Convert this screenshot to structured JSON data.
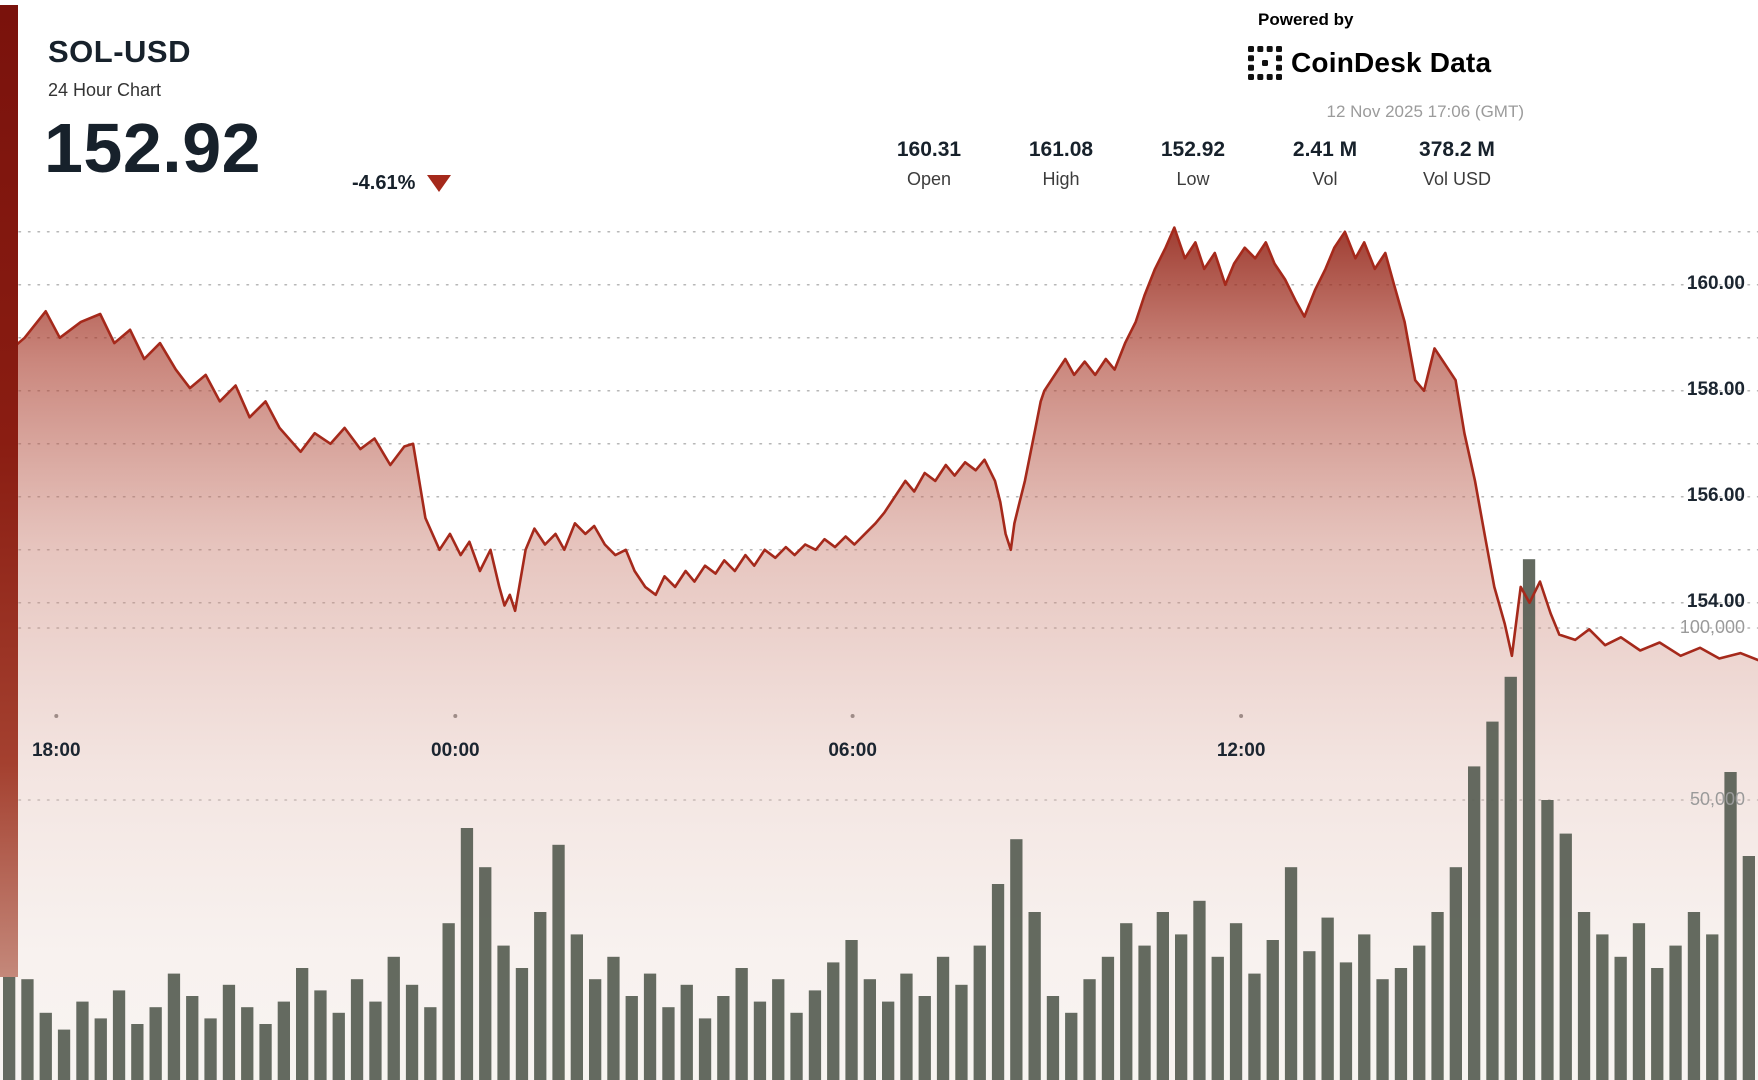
{
  "header": {
    "symbol": "SOL-USD",
    "subtitle": "24 Hour Chart",
    "price": "152.92",
    "change": "-4.61%",
    "change_direction": "down",
    "powered_by": "Powered by",
    "brand": "CoinDesk Data",
    "timestamp": "12 Nov 2025 17:06 (GMT)"
  },
  "stats": [
    {
      "value": "160.31",
      "label": "Open"
    },
    {
      "value": "161.08",
      "label": "High"
    },
    {
      "value": "152.92",
      "label": "Low"
    },
    {
      "value": "2.41 M",
      "label": "Vol"
    },
    {
      "value": "378.2 M",
      "label": "Vol USD"
    }
  ],
  "colors": {
    "accent_red": "#a5291b",
    "fill_top": "#8c1c10",
    "volume_bar": "#5a6156",
    "text_dark": "#17212b",
    "muted_gray": "#9a9a9a"
  },
  "chart_data": {
    "type": "area",
    "title": "SOL-USD 24 Hour Chart",
    "open": 160.31,
    "high": 161.08,
    "low": 152.92,
    "volume": "2.41 M",
    "volume_usd": "378.2 M",
    "x_axis": {
      "labels": [
        {
          "text": "18:00",
          "f": 0.032
        },
        {
          "text": "00:00",
          "f": 0.259
        },
        {
          "text": "06:00",
          "f": 0.485
        },
        {
          "text": "12:00",
          "f": 0.706
        }
      ]
    },
    "y_axis": {
      "range": [
        152.3,
        161.6
      ],
      "gridlines": [
        161,
        160,
        159,
        158,
        157,
        156,
        155,
        154
      ],
      "price_labels": [
        {
          "text": "160.00",
          "value": 160
        },
        {
          "text": "158.00",
          "value": 158
        },
        {
          "text": "156.00",
          "value": 156
        },
        {
          "text": "154.00",
          "value": 154
        }
      ]
    },
    "volume_axis": {
      "labels": [
        {
          "text": "100,000",
          "value": 100000
        },
        {
          "text": "50,000",
          "value": 50000
        }
      ]
    },
    "price_series": [
      [
        0.0,
        158.6
      ],
      [
        0.014,
        159.0
      ],
      [
        0.026,
        159.5
      ],
      [
        0.034,
        159.0
      ],
      [
        0.046,
        159.3
      ],
      [
        0.057,
        159.45
      ],
      [
        0.065,
        158.9
      ],
      [
        0.074,
        159.15
      ],
      [
        0.082,
        158.6
      ],
      [
        0.091,
        158.9
      ],
      [
        0.1,
        158.4
      ],
      [
        0.108,
        158.05
      ],
      [
        0.117,
        158.3
      ],
      [
        0.125,
        157.8
      ],
      [
        0.134,
        158.1
      ],
      [
        0.142,
        157.5
      ],
      [
        0.151,
        157.8
      ],
      [
        0.159,
        157.3
      ],
      [
        0.171,
        156.85
      ],
      [
        0.179,
        157.2
      ],
      [
        0.188,
        157.0
      ],
      [
        0.196,
        157.3
      ],
      [
        0.205,
        156.9
      ],
      [
        0.213,
        157.1
      ],
      [
        0.222,
        156.6
      ],
      [
        0.23,
        156.95
      ],
      [
        0.235,
        157.0
      ],
      [
        0.242,
        155.6
      ],
      [
        0.25,
        155.0
      ],
      [
        0.256,
        155.3
      ],
      [
        0.262,
        154.9
      ],
      [
        0.267,
        155.15
      ],
      [
        0.273,
        154.6
      ],
      [
        0.279,
        155.0
      ],
      [
        0.284,
        154.3
      ],
      [
        0.287,
        153.95
      ],
      [
        0.29,
        154.15
      ],
      [
        0.293,
        153.85
      ],
      [
        0.299,
        155.0
      ],
      [
        0.304,
        155.4
      ],
      [
        0.31,
        155.1
      ],
      [
        0.316,
        155.3
      ],
      [
        0.321,
        155.0
      ],
      [
        0.327,
        155.5
      ],
      [
        0.333,
        155.3
      ],
      [
        0.338,
        155.45
      ],
      [
        0.344,
        155.1
      ],
      [
        0.35,
        154.9
      ],
      [
        0.356,
        155.0
      ],
      [
        0.361,
        154.6
      ],
      [
        0.367,
        154.3
      ],
      [
        0.373,
        154.15
      ],
      [
        0.378,
        154.5
      ],
      [
        0.384,
        154.3
      ],
      [
        0.39,
        154.6
      ],
      [
        0.395,
        154.4
      ],
      [
        0.401,
        154.7
      ],
      [
        0.407,
        154.55
      ],
      [
        0.412,
        154.8
      ],
      [
        0.418,
        154.6
      ],
      [
        0.424,
        154.9
      ],
      [
        0.429,
        154.7
      ],
      [
        0.435,
        155.0
      ],
      [
        0.441,
        154.85
      ],
      [
        0.447,
        155.05
      ],
      [
        0.452,
        154.9
      ],
      [
        0.458,
        155.1
      ],
      [
        0.464,
        155.0
      ],
      [
        0.469,
        155.2
      ],
      [
        0.475,
        155.05
      ],
      [
        0.481,
        155.25
      ],
      [
        0.486,
        155.1
      ],
      [
        0.492,
        155.3
      ],
      [
        0.498,
        155.5
      ],
      [
        0.503,
        155.7
      ],
      [
        0.509,
        156.0
      ],
      [
        0.515,
        156.3
      ],
      [
        0.52,
        156.1
      ],
      [
        0.526,
        156.45
      ],
      [
        0.532,
        156.3
      ],
      [
        0.538,
        156.6
      ],
      [
        0.543,
        156.4
      ],
      [
        0.549,
        156.65
      ],
      [
        0.555,
        156.5
      ],
      [
        0.56,
        156.7
      ],
      [
        0.566,
        156.3
      ],
      [
        0.569,
        155.9
      ],
      [
        0.572,
        155.3
      ],
      [
        0.575,
        155.0
      ],
      [
        0.577,
        155.5
      ],
      [
        0.58,
        155.9
      ],
      [
        0.583,
        156.3
      ],
      [
        0.586,
        156.8
      ],
      [
        0.589,
        157.3
      ],
      [
        0.592,
        157.8
      ],
      [
        0.594,
        158.0
      ],
      [
        0.6,
        158.3
      ],
      [
        0.606,
        158.6
      ],
      [
        0.611,
        158.3
      ],
      [
        0.617,
        158.55
      ],
      [
        0.623,
        158.3
      ],
      [
        0.629,
        158.6
      ],
      [
        0.634,
        158.4
      ],
      [
        0.64,
        158.9
      ],
      [
        0.646,
        159.3
      ],
      [
        0.651,
        159.8
      ],
      [
        0.657,
        160.3
      ],
      [
        0.663,
        160.7
      ],
      [
        0.668,
        161.08
      ],
      [
        0.674,
        160.5
      ],
      [
        0.68,
        160.8
      ],
      [
        0.685,
        160.3
      ],
      [
        0.691,
        160.6
      ],
      [
        0.697,
        160.0
      ],
      [
        0.702,
        160.4
      ],
      [
        0.708,
        160.7
      ],
      [
        0.714,
        160.5
      ],
      [
        0.72,
        160.8
      ],
      [
        0.725,
        160.4
      ],
      [
        0.731,
        160.1
      ],
      [
        0.737,
        159.7
      ],
      [
        0.742,
        159.4
      ],
      [
        0.748,
        159.9
      ],
      [
        0.754,
        160.3
      ],
      [
        0.759,
        160.7
      ],
      [
        0.765,
        161.0
      ],
      [
        0.771,
        160.5
      ],
      [
        0.776,
        160.8
      ],
      [
        0.782,
        160.3
      ],
      [
        0.788,
        160.6
      ],
      [
        0.793,
        160.0
      ],
      [
        0.799,
        159.3
      ],
      [
        0.805,
        158.2
      ],
      [
        0.81,
        158.0
      ],
      [
        0.816,
        158.8
      ],
      [
        0.822,
        158.5
      ],
      [
        0.828,
        158.2
      ],
      [
        0.833,
        157.2
      ],
      [
        0.839,
        156.3
      ],
      [
        0.845,
        155.2
      ],
      [
        0.85,
        154.3
      ],
      [
        0.856,
        153.6
      ],
      [
        0.86,
        153.0
      ],
      [
        0.865,
        154.3
      ],
      [
        0.87,
        154.0
      ],
      [
        0.876,
        154.4
      ],
      [
        0.882,
        153.8
      ],
      [
        0.887,
        153.4
      ],
      [
        0.896,
        153.3
      ],
      [
        0.904,
        153.5
      ],
      [
        0.913,
        153.2
      ],
      [
        0.922,
        153.35
      ],
      [
        0.933,
        153.1
      ],
      [
        0.944,
        153.25
      ],
      [
        0.956,
        153.0
      ],
      [
        0.967,
        153.15
      ],
      [
        0.978,
        152.95
      ],
      [
        0.99,
        153.05
      ],
      [
        1.0,
        152.92
      ]
    ],
    "volume_series": [
      33000,
      18000,
      12000,
      9000,
      14000,
      11000,
      16000,
      10000,
      13000,
      19000,
      15000,
      11000,
      17000,
      13000,
      10000,
      14000,
      20000,
      16000,
      12000,
      18000,
      14000,
      22000,
      17000,
      13000,
      28000,
      45000,
      38000,
      24000,
      20000,
      30000,
      42000,
      26000,
      18000,
      22000,
      15000,
      19000,
      13000,
      17000,
      11000,
      15000,
      20000,
      14000,
      18000,
      12000,
      16000,
      21000,
      25000,
      18000,
      14000,
      19000,
      15000,
      22000,
      17000,
      24000,
      35000,
      43000,
      30000,
      15000,
      12000,
      18000,
      22000,
      28000,
      24000,
      30000,
      26000,
      32000,
      22000,
      28000,
      19000,
      25000,
      38000,
      23000,
      29000,
      21000,
      26000,
      18000,
      20000,
      24000,
      30000,
      38000,
      56000,
      64000,
      72000,
      93000,
      50000,
      44000,
      30000,
      26000,
      22000,
      28000,
      20000,
      24000,
      30000,
      26000,
      55000,
      40000
    ]
  }
}
